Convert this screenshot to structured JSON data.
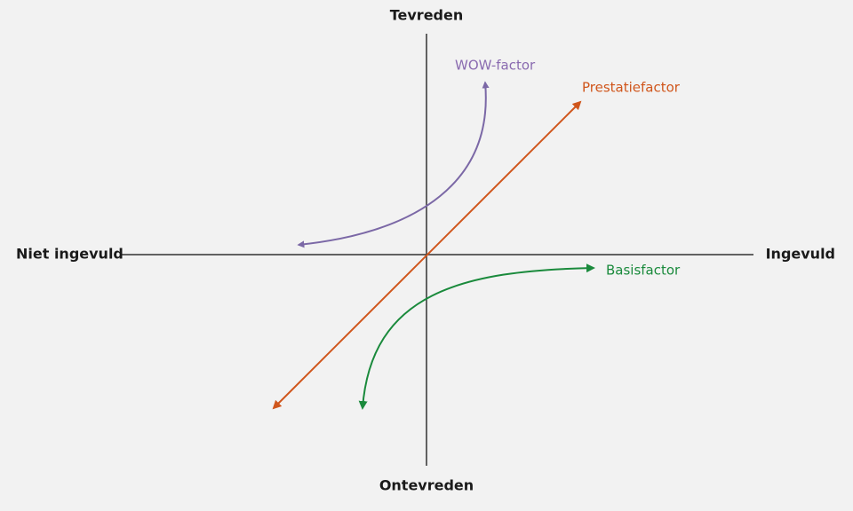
{
  "axes": {
    "top": "Tevreden",
    "bottom": "Ontevreden",
    "left": "Niet ingevuld",
    "right": "Ingevuld"
  },
  "curves": [
    {
      "label": "WOW-factor"
    },
    {
      "label": "Prestatiefactor"
    },
    {
      "label": "Basisfactor"
    }
  ]
}
